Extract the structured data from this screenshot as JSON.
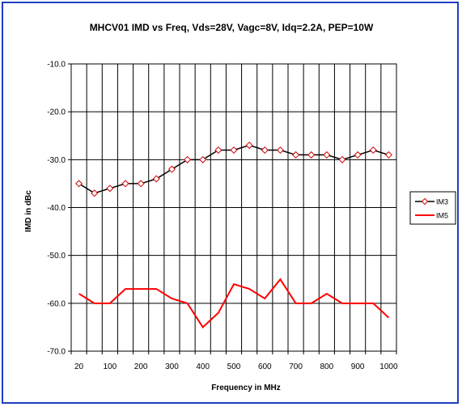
{
  "chart_data": {
    "type": "line",
    "title": "MHCV01 IMD vs Freq, Vds=28V, Vagc=8V, Idq=2.2A, PEP=10W",
    "xlabel": "Frequency in MHz",
    "ylabel": "IMD in dBc",
    "xlim": [
      0,
      1000
    ],
    "ylim": [
      -70,
      -10
    ],
    "x_tick_labels": [
      "20",
      "100",
      "200",
      "300",
      "400",
      "500",
      "600",
      "700",
      "800",
      "900",
      "1000"
    ],
    "y_tick_labels": [
      "-10.0",
      "-20.0",
      "-30.0",
      "-40.0",
      "-50.0",
      "-60.0",
      "-70.0"
    ],
    "y_ticks": [
      -10,
      -20,
      -30,
      -40,
      -50,
      -60,
      -70
    ],
    "grid": true,
    "legend_position": "right",
    "x": [
      20,
      70,
      120,
      170,
      220,
      270,
      320,
      370,
      420,
      470,
      520,
      570,
      620,
      670,
      720,
      770,
      820,
      870,
      920,
      970,
      1000
    ],
    "series": [
      {
        "name": "IM3",
        "color": "#000000",
        "marker": "diamond",
        "marker_color": "#cc0000",
        "values": [
          -35,
          -37,
          -36,
          -35,
          -35,
          -34,
          -32,
          -30,
          -30,
          -28,
          -28,
          -27,
          -28,
          -28,
          -29,
          -29,
          -29,
          -30,
          -29,
          -28,
          -29
        ]
      },
      {
        "name": "IM5",
        "color": "#ff0000",
        "marker": "none",
        "values": [
          -58,
          -60,
          -60,
          -57,
          -57,
          -57,
          -59,
          -60,
          -65,
          -62,
          -56,
          -57,
          -59,
          -55,
          -60,
          -60,
          -58,
          -60,
          -60,
          -60,
          -63
        ]
      }
    ]
  }
}
